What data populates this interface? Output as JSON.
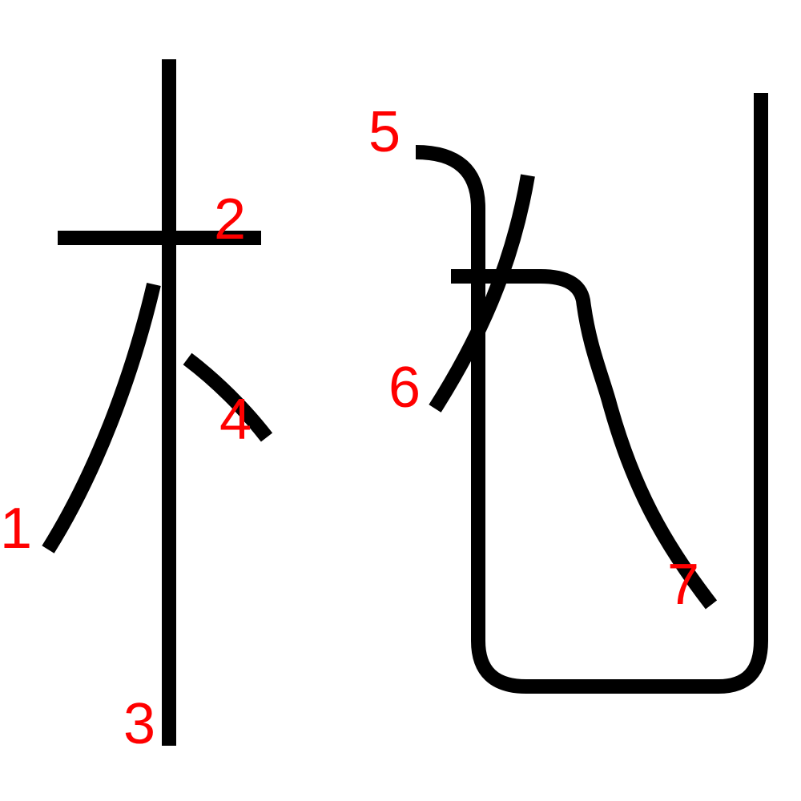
{
  "colors": {
    "background": "#ffffff",
    "stroke": "#000000",
    "number": "#ff0000"
  },
  "strokes": [
    {
      "order": "1",
      "name": "stroke-1-left-falling"
    },
    {
      "order": "2",
      "name": "stroke-2-horizontal"
    },
    {
      "order": "3",
      "name": "stroke-3-vertical"
    },
    {
      "order": "4",
      "name": "stroke-4-dot"
    },
    {
      "order": "5",
      "name": "stroke-5-vertical-bend-hook"
    },
    {
      "order": "6",
      "name": "stroke-6-left-falling"
    },
    {
      "order": "7",
      "name": "stroke-7-horizontal-turn-curve"
    }
  ]
}
